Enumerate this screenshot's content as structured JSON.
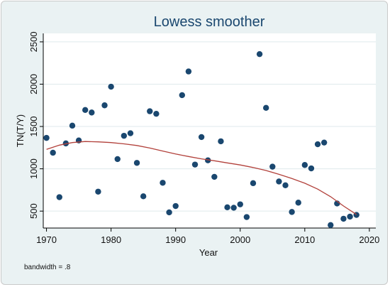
{
  "chart_data": {
    "type": "scatter",
    "title": "Lowess smoother",
    "xlabel": "Year",
    "ylabel": "TN(T/Y)",
    "note": "bandwidth = .8",
    "xlim": [
      1969.5,
      2021
    ],
    "ylim": [
      300,
      2600
    ],
    "xticks": [
      1970,
      1980,
      1990,
      2000,
      2010,
      2020
    ],
    "yticks": [
      500,
      1000,
      1500,
      2000,
      2500
    ],
    "grid": true,
    "colors": {
      "points": "#1a476f",
      "line": "#b2413b",
      "title": "#1a476f",
      "grid": "#dfe9ec",
      "plot_background": "#ffffff",
      "outer_background": "#eaf2f3"
    },
    "points": {
      "x": [
        1970,
        1971,
        1972,
        1973,
        1974,
        1975,
        1976,
        1977,
        1978,
        1979,
        1980,
        1981,
        1982,
        1983,
        1984,
        1985,
        1986,
        1987,
        1988,
        1989,
        1990,
        1991,
        1992,
        1993,
        1994,
        1995,
        1996,
        1997,
        1998,
        1999,
        2000,
        2001,
        2002,
        2003,
        2004,
        2005,
        2006,
        2007,
        2008,
        2009,
        2010,
        2011,
        2012,
        2013,
        2014,
        2015,
        2016,
        2017,
        2018
      ],
      "y": [
        1365,
        1190,
        665,
        1300,
        1510,
        1335,
        1695,
        1665,
        730,
        1750,
        1970,
        1115,
        1390,
        1420,
        1070,
        675,
        1680,
        1650,
        835,
        485,
        560,
        1870,
        2150,
        1050,
        1375,
        1100,
        905,
        1325,
        545,
        540,
        580,
        430,
        830,
        2355,
        1720,
        1025,
        850,
        805,
        490,
        600,
        1045,
        1005,
        1290,
        1310,
        335,
        590,
        410,
        435,
        455
      ]
    },
    "lowess": {
      "x": [
        1970,
        1972,
        1974,
        1976,
        1978,
        1980,
        1982,
        1984,
        1986,
        1988,
        1990,
        1992,
        1994,
        1996,
        1998,
        2000,
        2002,
        2004,
        2006,
        2008,
        2010,
        2012,
        2014,
        2016,
        2018
      ],
      "y": [
        1230,
        1280,
        1310,
        1322,
        1318,
        1310,
        1295,
        1275,
        1245,
        1210,
        1175,
        1145,
        1118,
        1095,
        1070,
        1045,
        1015,
        980,
        935,
        885,
        830,
        760,
        670,
        560,
        460
      ]
    }
  }
}
